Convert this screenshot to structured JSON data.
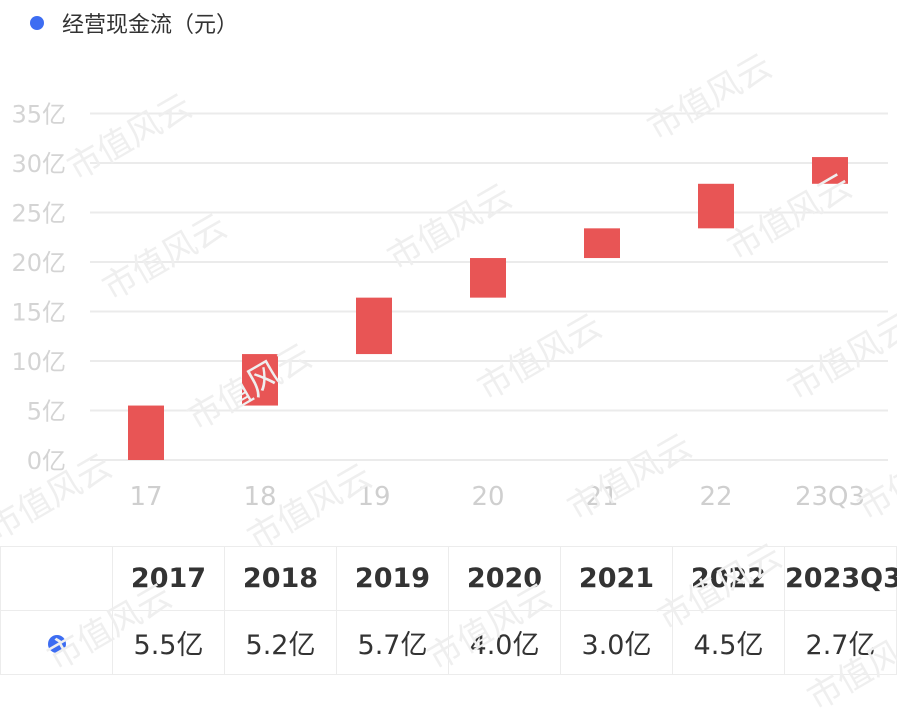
{
  "legend": {
    "label": "经营现金流（元）",
    "color": "#3d6df2"
  },
  "watermark_text": "市值风云",
  "chart_data": {
    "type": "bar",
    "subtype": "waterfall",
    "categories": [
      "17",
      "18",
      "19",
      "20",
      "21",
      "22",
      "23Q3"
    ],
    "series": [
      {
        "name": "经营现金流（元）",
        "bar_color": "#e85555",
        "increments": [
          5.5,
          5.2,
          5.7,
          4.0,
          3.0,
          4.5,
          2.7
        ],
        "start": [
          0,
          5.5,
          10.7,
          16.4,
          20.4,
          23.4,
          27.9
        ],
        "end": [
          5.5,
          10.7,
          16.4,
          20.4,
          23.4,
          27.9,
          30.6
        ]
      }
    ],
    "yticks": [
      {
        "value": 0,
        "label": "0亿"
      },
      {
        "value": 5,
        "label": "5亿"
      },
      {
        "value": 10,
        "label": "10亿"
      },
      {
        "value": 15,
        "label": "15亿"
      },
      {
        "value": 20,
        "label": "20亿"
      },
      {
        "value": 25,
        "label": "25亿"
      },
      {
        "value": 30,
        "label": "30亿"
      },
      {
        "value": 35,
        "label": "35亿"
      }
    ],
    "ylim": [
      0,
      35
    ],
    "grid": true,
    "legend_position": "top-left"
  },
  "table": {
    "headers": [
      "2017",
      "2018",
      "2019",
      "2020",
      "2021",
      "2022",
      "2023Q3"
    ],
    "values": [
      "5.5亿",
      "5.2亿",
      "5.7亿",
      "4.0亿",
      "3.0亿",
      "4.5亿",
      "2.7亿"
    ]
  }
}
